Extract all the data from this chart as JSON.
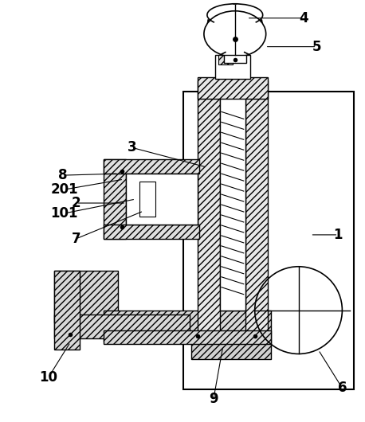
{
  "bg_color": "#ffffff",
  "line_color": "#000000",
  "figsize": [
    4.58,
    5.3
  ],
  "dpi": 100
}
